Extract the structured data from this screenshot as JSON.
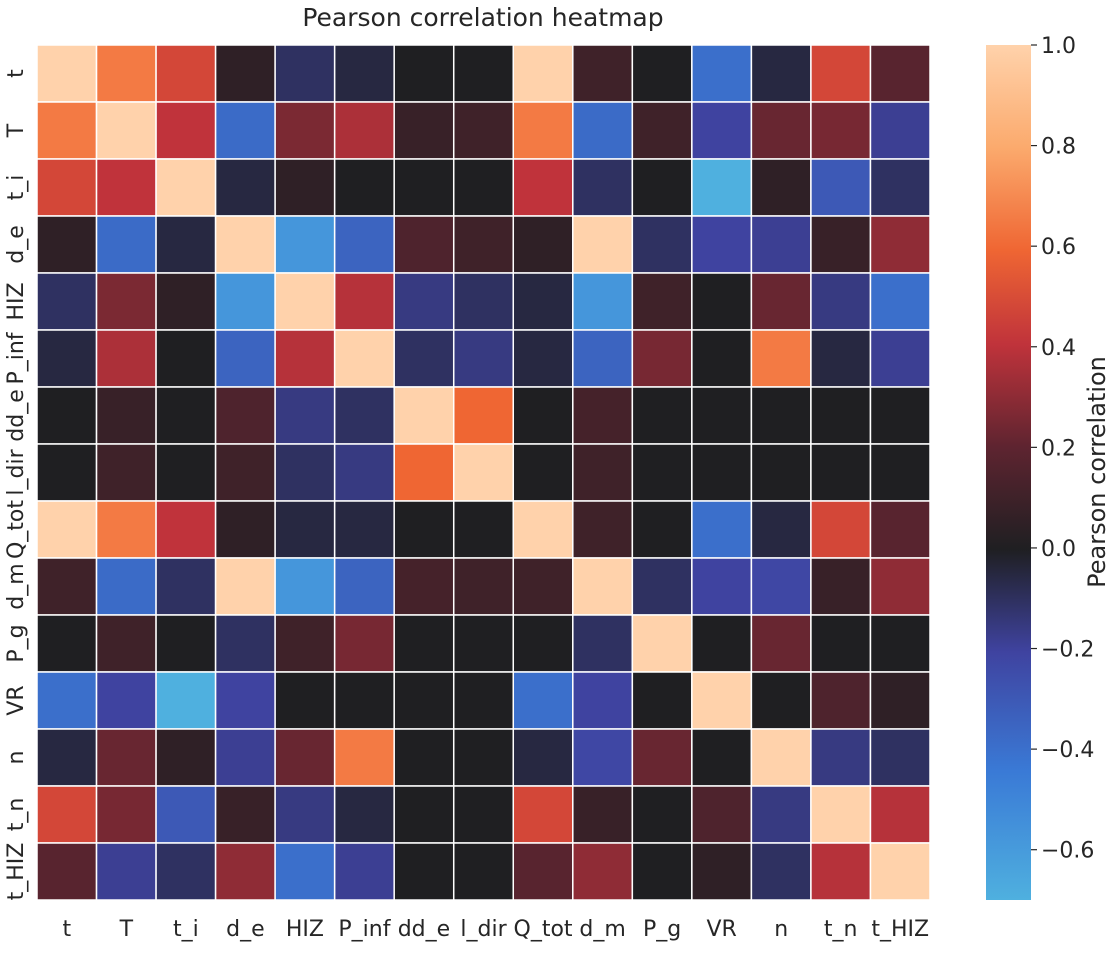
{
  "chart_data": {
    "type": "heatmap",
    "title": "Pearson correlation heatmap",
    "x_labels": [
      "t",
      "T",
      "t_i",
      "d_e",
      "HIZ",
      "P_inf",
      "dd_e",
      "l_dir",
      "Q_tot",
      "d_m",
      "P_g",
      "VR",
      "n",
      "t_n",
      "t_HIZ"
    ],
    "y_labels": [
      "t",
      "T",
      "t_i",
      "d_e",
      "HIZ",
      "P_inf",
      "dd_e",
      "l_dir",
      "Q_tot",
      "d_m",
      "P_g",
      "VR",
      "n",
      "t_n",
      "t_HIZ"
    ],
    "values": [
      [
        1.0,
        0.66,
        0.48,
        0.05,
        -0.1,
        -0.05,
        0.0,
        0.0,
        1.0,
        0.1,
        0.0,
        -0.4,
        -0.05,
        0.48,
        0.18
      ],
      [
        0.66,
        1.0,
        0.4,
        -0.38,
        0.26,
        0.36,
        0.08,
        0.1,
        0.66,
        -0.38,
        0.1,
        -0.2,
        0.22,
        0.25,
        -0.18
      ],
      [
        0.48,
        0.4,
        1.0,
        -0.05,
        0.05,
        0.0,
        0.0,
        0.0,
        0.4,
        -0.1,
        0.0,
        -0.7,
        0.05,
        -0.3,
        -0.1
      ],
      [
        0.05,
        -0.38,
        -0.05,
        1.0,
        -0.58,
        -0.35,
        0.15,
        0.1,
        0.05,
        1.0,
        -0.1,
        -0.2,
        -0.18,
        0.08,
        0.3
      ],
      [
        -0.1,
        0.26,
        0.05,
        -0.58,
        1.0,
        0.38,
        -0.15,
        -0.1,
        -0.05,
        -0.58,
        0.1,
        0.0,
        0.22,
        -0.15,
        -0.4
      ],
      [
        -0.05,
        0.36,
        0.0,
        -0.35,
        0.38,
        1.0,
        -0.1,
        -0.15,
        -0.05,
        -0.35,
        0.25,
        0.0,
        0.66,
        -0.05,
        -0.18
      ],
      [
        0.0,
        0.08,
        0.0,
        0.15,
        -0.15,
        -0.1,
        1.0,
        0.6,
        0.0,
        0.12,
        0.0,
        0.0,
        0.0,
        0.0,
        0.0
      ],
      [
        0.0,
        0.1,
        0.0,
        0.1,
        -0.1,
        -0.15,
        0.6,
        1.0,
        0.0,
        0.1,
        0.0,
        0.0,
        0.0,
        0.0,
        0.0
      ],
      [
        1.0,
        0.66,
        0.4,
        0.05,
        -0.05,
        -0.05,
        0.0,
        0.0,
        1.0,
        0.1,
        0.0,
        -0.4,
        -0.05,
        0.48,
        0.18
      ],
      [
        0.1,
        -0.38,
        -0.1,
        1.0,
        -0.58,
        -0.35,
        0.12,
        0.1,
        0.1,
        1.0,
        -0.1,
        -0.2,
        -0.22,
        0.08,
        0.3
      ],
      [
        0.0,
        0.1,
        0.0,
        -0.1,
        0.1,
        0.25,
        0.0,
        0.0,
        0.0,
        -0.1,
        1.0,
        0.0,
        0.22,
        0.0,
        0.0
      ],
      [
        -0.4,
        -0.2,
        -0.7,
        -0.2,
        0.0,
        0.0,
        0.0,
        0.0,
        -0.4,
        -0.2,
        0.0,
        1.0,
        0.0,
        0.15,
        0.05
      ],
      [
        -0.05,
        0.22,
        0.05,
        -0.18,
        0.22,
        0.66,
        0.0,
        0.0,
        -0.05,
        -0.22,
        0.22,
        0.0,
        1.0,
        -0.15,
        -0.1
      ],
      [
        0.48,
        0.25,
        -0.3,
        0.08,
        -0.15,
        -0.05,
        0.0,
        0.0,
        0.48,
        0.08,
        0.0,
        0.15,
        -0.15,
        1.0,
        0.38
      ],
      [
        0.18,
        -0.18,
        -0.1,
        0.3,
        -0.4,
        -0.18,
        0.0,
        0.0,
        0.18,
        0.3,
        0.0,
        0.05,
        -0.1,
        0.38,
        1.0
      ]
    ],
    "colorbar": {
      "label": "Pearson correlation",
      "range": [
        -0.7,
        1.0
      ],
      "ticks": [
        1.0,
        0.8,
        0.6,
        0.4,
        0.2,
        0.0,
        -0.2,
        -0.4,
        -0.6
      ],
      "tick_labels": [
        "1.0",
        "0.8",
        "0.6",
        "0.4",
        "0.2",
        "0.0",
        "−0.2",
        "−0.4",
        "−0.6"
      ],
      "colormap": "icefire-like diverging (blue negative, dark at zero, orange/peach positive)",
      "colors": {
        "min": "#4fb0df",
        "blue": "#3a7ad6",
        "indigo": "#3f43a0",
        "zero": "#1f1f22",
        "maroon": "#5e2430",
        "red": "#c0333b",
        "orange": "#ef6633",
        "peach": "#fbaa6d",
        "max": "#ffd2ab"
      }
    }
  }
}
